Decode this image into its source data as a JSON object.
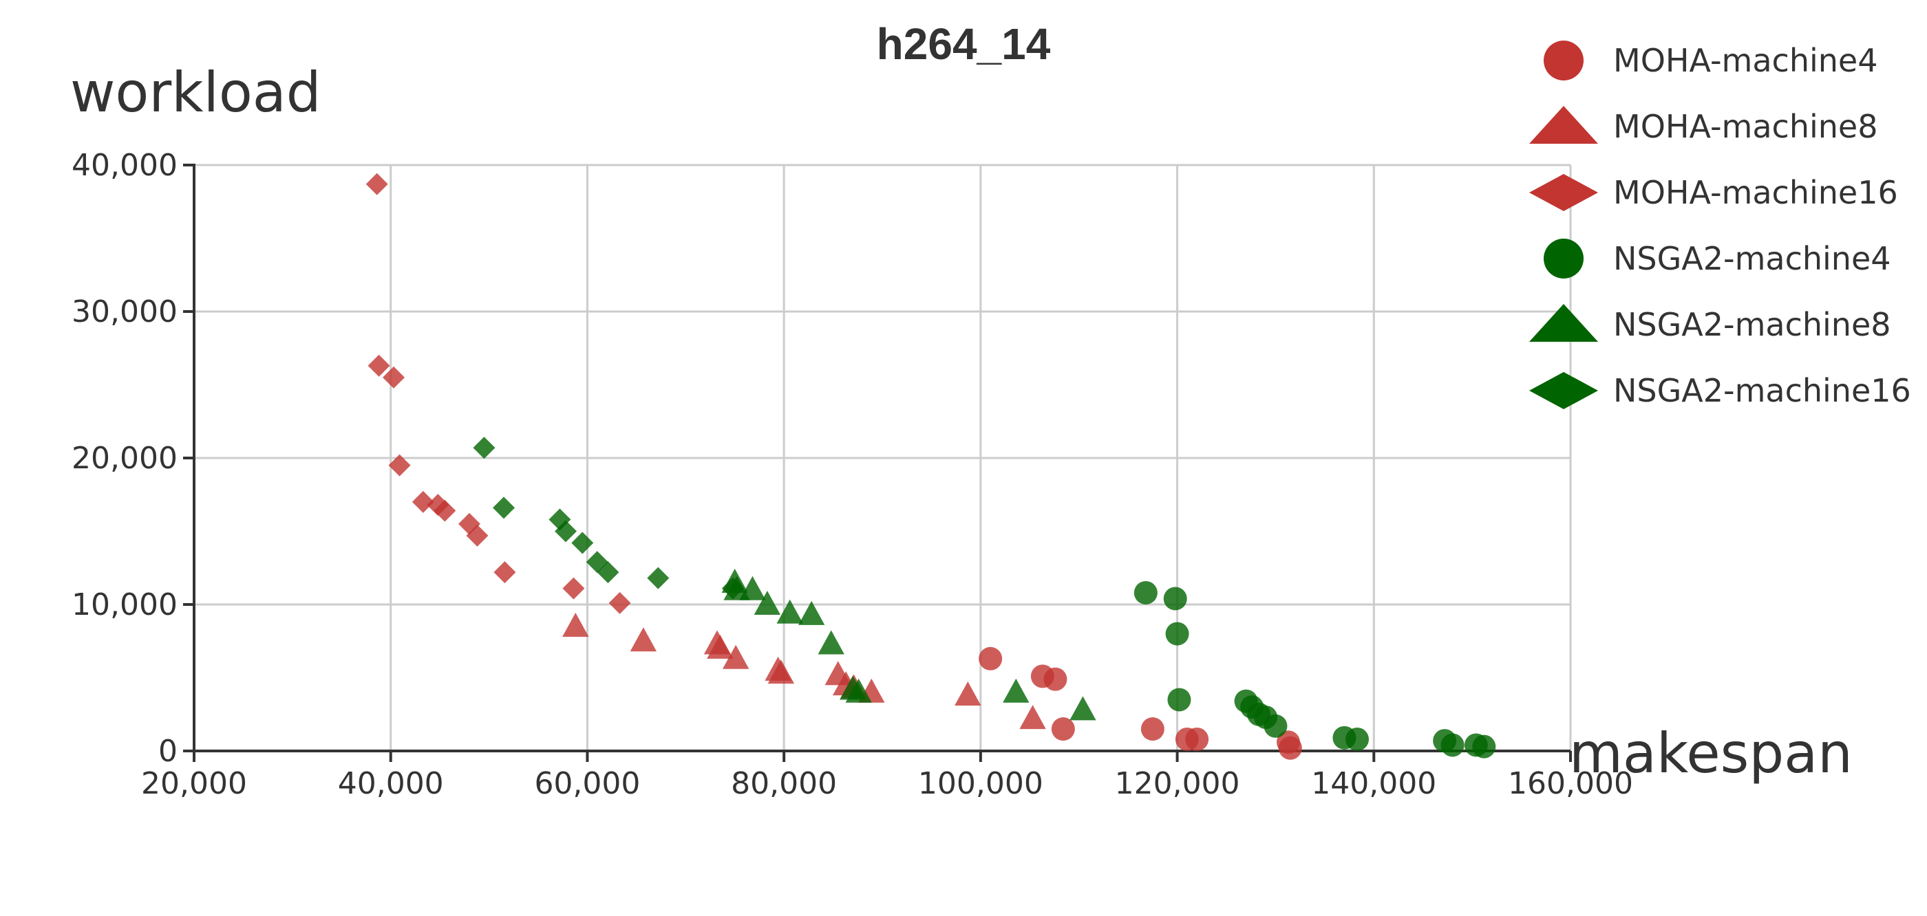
{
  "chart_data": {
    "type": "scatter",
    "title": "h264_14",
    "xlabel": "makespan",
    "ylabel": "workload",
    "xlim": [
      20000,
      160000
    ],
    "ylim": [
      0,
      40000
    ],
    "x_ticks": [
      "20,000",
      "40,000",
      "60,000",
      "80,000",
      "100,000",
      "120,000",
      "140,000",
      "160,000"
    ],
    "y_ticks": [
      "0",
      "10,000",
      "20,000",
      "30,000",
      "40,000"
    ],
    "grid": true,
    "legend_position": "top-right",
    "series": [
      {
        "name": "MOHA-machine4",
        "marker": "circle",
        "color": "#c23531",
        "points": [
          [
            101000,
            6300
          ],
          [
            106300,
            5100
          ],
          [
            107600,
            4900
          ],
          [
            108400,
            1500
          ],
          [
            117500,
            1500
          ],
          [
            121000,
            800
          ],
          [
            122000,
            800
          ],
          [
            131300,
            600
          ],
          [
            131500,
            200
          ]
        ]
      },
      {
        "name": "MOHA-machine8",
        "marker": "triangle",
        "color": "#c23531",
        "points": [
          [
            58800,
            8500
          ],
          [
            65700,
            7500
          ],
          [
            73200,
            7300
          ],
          [
            73500,
            7000
          ],
          [
            75100,
            6300
          ],
          [
            79400,
            5500
          ],
          [
            79700,
            5300
          ],
          [
            85500,
            5200
          ],
          [
            86300,
            4500
          ],
          [
            87100,
            4300
          ],
          [
            88900,
            4000
          ],
          [
            98700,
            3800
          ],
          [
            105300,
            2200
          ]
        ]
      },
      {
        "name": "MOHA-machine16",
        "marker": "diamond",
        "color": "#c23531",
        "points": [
          [
            38600,
            38700
          ],
          [
            38800,
            26300
          ],
          [
            40300,
            25500
          ],
          [
            40900,
            19500
          ],
          [
            43300,
            17000
          ],
          [
            44800,
            16800
          ],
          [
            45500,
            16400
          ],
          [
            48000,
            15500
          ],
          [
            48800,
            14700
          ],
          [
            51600,
            12200
          ],
          [
            58600,
            11100
          ],
          [
            63300,
            10100
          ]
        ]
      },
      {
        "name": "NSGA2-machine4",
        "marker": "circle",
        "color": "#006400",
        "points": [
          [
            116800,
            10800
          ],
          [
            119800,
            10400
          ],
          [
            120000,
            8000
          ],
          [
            120200,
            3500
          ],
          [
            127000,
            3400
          ],
          [
            127600,
            3000
          ],
          [
            128300,
            2500
          ],
          [
            129000,
            2300
          ],
          [
            130000,
            1700
          ],
          [
            137000,
            900
          ],
          [
            138300,
            800
          ],
          [
            147200,
            700
          ],
          [
            148000,
            400
          ],
          [
            150400,
            400
          ],
          [
            151200,
            300
          ]
        ]
      },
      {
        "name": "NSGA2-machine8",
        "marker": "triangle",
        "color": "#006400",
        "points": [
          [
            75000,
            11500
          ],
          [
            75200,
            11000
          ],
          [
            76800,
            11000
          ],
          [
            78300,
            10000
          ],
          [
            80600,
            9400
          ],
          [
            82800,
            9300
          ],
          [
            84800,
            7300
          ],
          [
            87000,
            4200
          ],
          [
            87600,
            4000
          ],
          [
            103600,
            4000
          ],
          [
            110400,
            2800
          ]
        ]
      },
      {
        "name": "NSGA2-machine16",
        "marker": "diamond",
        "color": "#006400",
        "points": [
          [
            49500,
            20700
          ],
          [
            51500,
            16600
          ],
          [
            57200,
            15800
          ],
          [
            57800,
            15000
          ],
          [
            59500,
            14200
          ],
          [
            61000,
            12900
          ],
          [
            62100,
            12200
          ],
          [
            67200,
            11800
          ],
          [
            74800,
            11100
          ]
        ]
      }
    ]
  }
}
